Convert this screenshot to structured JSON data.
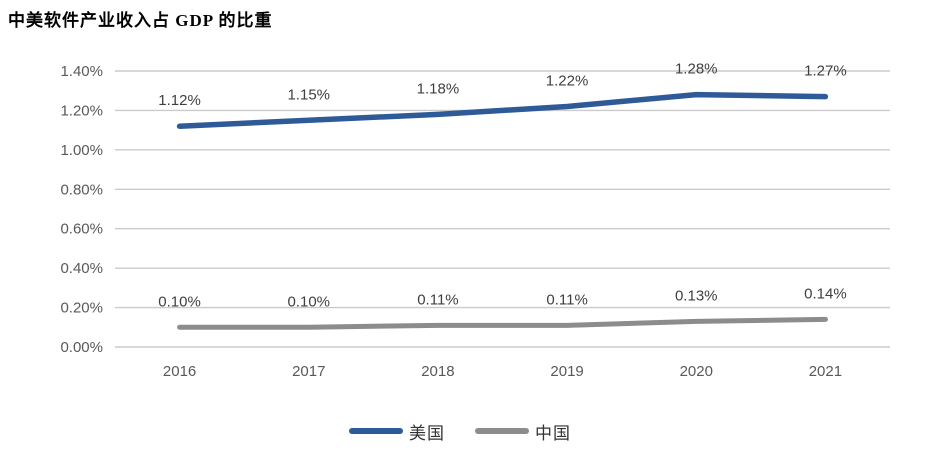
{
  "title": "中美软件产业收入占 GDP 的比重",
  "chart_data": {
    "type": "line",
    "title": "中美软件产业收入占 GDP 的比重",
    "categories": [
      "2016",
      "2017",
      "2018",
      "2019",
      "2020",
      "2021"
    ],
    "series": [
      {
        "key": "us",
        "name": "美国",
        "color": "#2E5B97",
        "stroke_width": 5.5,
        "values": [
          1.12,
          1.15,
          1.18,
          1.22,
          1.28,
          1.27
        ],
        "point_labels": [
          "1.12%",
          "1.15%",
          "1.18%",
          "1.22%",
          "1.28%",
          "1.27%"
        ]
      },
      {
        "key": "china",
        "name": "中国",
        "color": "#8C8C8C",
        "stroke_width": 5,
        "values": [
          0.1,
          0.1,
          0.11,
          0.11,
          0.13,
          0.14
        ],
        "point_labels": [
          "0.10%",
          "0.10%",
          "0.11%",
          "0.11%",
          "0.13%",
          "0.14%"
        ]
      }
    ],
    "ylim": [
      0,
      1.4
    ],
    "yticks": [
      {
        "value": 0.0,
        "label": "0.00%"
      },
      {
        "value": 0.2,
        "label": "0.20%"
      },
      {
        "value": 0.4,
        "label": "0.40%"
      },
      {
        "value": 0.6,
        "label": "0.60%"
      },
      {
        "value": 0.8,
        "label": "0.80%"
      },
      {
        "value": 1.0,
        "label": "1.00%"
      },
      {
        "value": 1.2,
        "label": "1.20%"
      },
      {
        "value": 1.4,
        "label": "1.40%"
      }
    ],
    "grid": true,
    "legend_position": "bottom",
    "xlabel": "",
    "ylabel": ""
  },
  "colors": {
    "grid": "#CBCBCB",
    "tick_text": "#595959",
    "data_label_text": "#3F3F3F",
    "background": "#FFFFFF"
  }
}
